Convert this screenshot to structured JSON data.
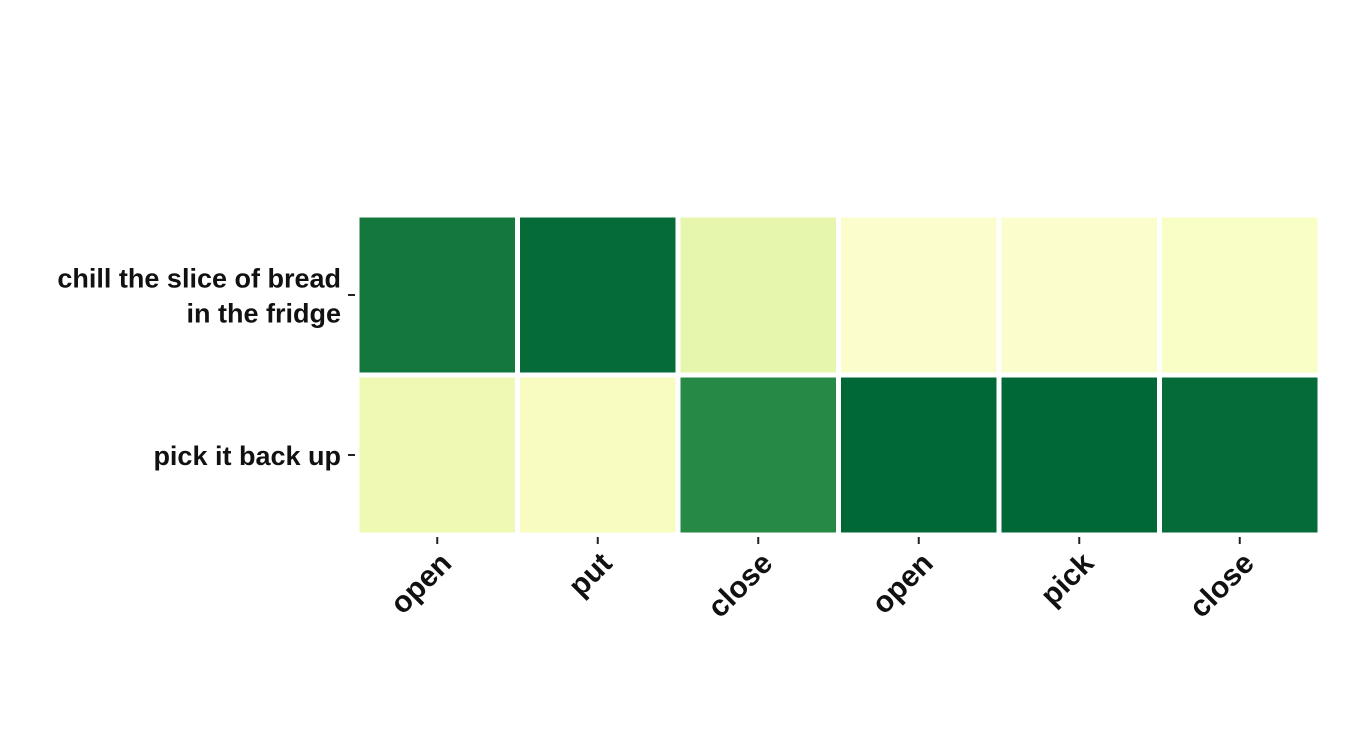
{
  "chart_data": {
    "type": "heatmap",
    "title": "",
    "xlabel": "",
    "ylabel": "",
    "rows": [
      [
        "chill the slice of bread",
        "in the fridge"
      ],
      [
        "pick it back up"
      ]
    ],
    "columns": [
      "open",
      "put",
      "close",
      "open",
      "pick",
      "close"
    ],
    "values": [
      [
        0.92,
        0.98,
        0.22,
        0.08,
        0.08,
        0.1
      ],
      [
        0.18,
        0.12,
        0.84,
        1.0,
        1.0,
        0.98
      ]
    ],
    "colormap": "YlGn",
    "color_stops": [
      "#ffffe5",
      "#f7fcb9",
      "#d9f0a3",
      "#addd8e",
      "#78c679",
      "#41ab5d",
      "#238443",
      "#006837"
    ],
    "legend": false,
    "grid": false
  }
}
